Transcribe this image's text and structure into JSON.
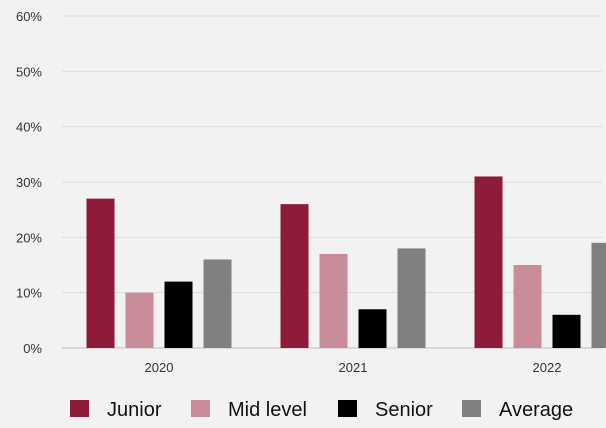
{
  "chart_data": {
    "type": "bar",
    "categories": [
      "2020",
      "2021",
      "2022"
    ],
    "series": [
      {
        "name": "Junior",
        "values": [
          27,
          26,
          31
        ],
        "color": "#8f1b3a"
      },
      {
        "name": "Mid level",
        "values": [
          10,
          17,
          15
        ],
        "color": "#c98d9a"
      },
      {
        "name": "Senior",
        "values": [
          12,
          7,
          6
        ],
        "color": "#000000"
      },
      {
        "name": "Average",
        "values": [
          16,
          18,
          19
        ],
        "color": "#808080"
      }
    ],
    "ylim": [
      0,
      60
    ],
    "yticks": [
      0,
      10,
      20,
      30,
      40,
      50,
      60
    ],
    "ytick_labels": [
      "0%",
      "10%",
      "20%",
      "30%",
      "40%",
      "50%",
      "60%"
    ],
    "grid": true,
    "legend": "bottom"
  }
}
